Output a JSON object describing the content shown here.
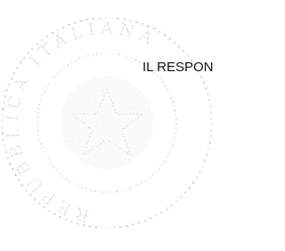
{
  "seal": {
    "text": "REPUBBLICA ITALIANA"
  },
  "heading": "IL RESPON"
}
